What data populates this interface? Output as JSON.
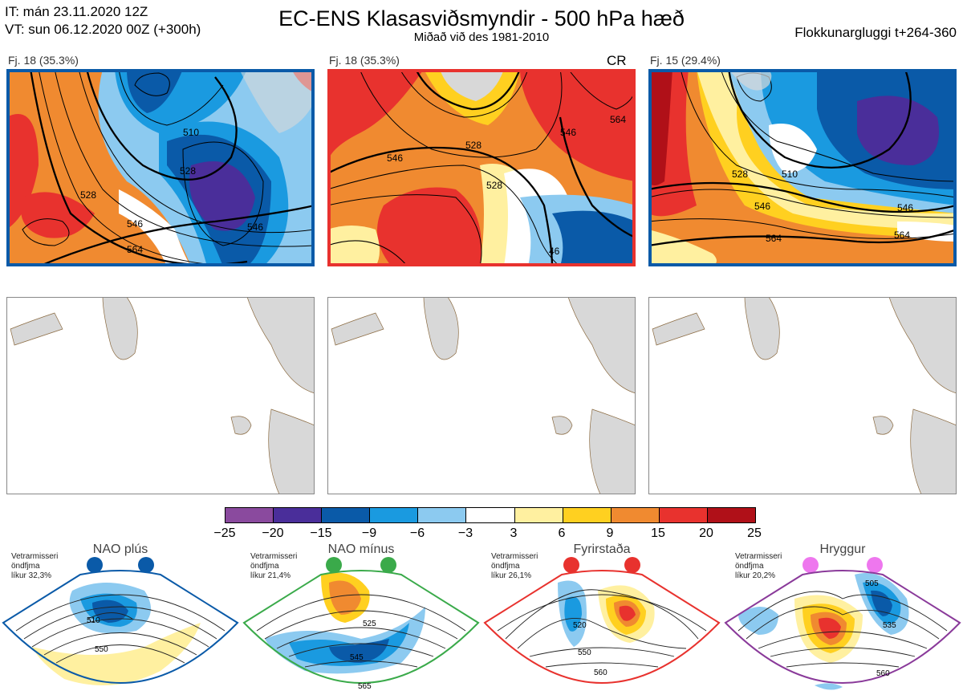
{
  "header": {
    "init_line": "IT: mán 23.11.2020 12Z",
    "valid_line": "VT: sun 06.12.2020 00Z  (+300h)",
    "title": "EC-ENS Klasasviðsmyndir - 500 hPa hæð",
    "subtitle": "Miðað við des 1981-2010",
    "window": "Flokkunargluggi t+264-360"
  },
  "clusters": [
    {
      "label": "Fj. 18 (35.3%)",
      "frame_color": "#0a5aa8",
      "tag": "",
      "contours": [
        "510",
        "528",
        "546",
        "528",
        "546",
        "564"
      ]
    },
    {
      "label": "Fj. 18 (35.3%)",
      "frame_color": "#e8322e",
      "tag": "CR",
      "contours": [
        "528",
        "546",
        "528",
        "546",
        "564",
        "46"
      ]
    },
    {
      "label": "Fj. 15 (29.4%)",
      "frame_color": "#0a5aa8",
      "tag": "",
      "contours": [
        "510",
        "528",
        "546",
        "564",
        "546",
        "564"
      ]
    }
  ],
  "colorbar": {
    "colors": [
      "#8a4a9e",
      "#4a2e9a",
      "#0a5aa8",
      "#1a9ae0",
      "#8ccaf0",
      "#ffffff",
      "#fff0a0",
      "#ffd020",
      "#f08a30",
      "#e8322e",
      "#b01018"
    ],
    "ticks": [
      "−25",
      "−20",
      "−15",
      "−9",
      "−6",
      "−3",
      "3",
      "6",
      "9",
      "15",
      "20",
      "25"
    ]
  },
  "regimes": [
    {
      "name": "NAO plús",
      "info": [
        "Vetrarmisseri",
        "öndfjma",
        "líkur 32,3%"
      ],
      "frame_color": "#0a5aa8",
      "dot_color": "#0a5aa8",
      "contours": [
        "510",
        "550"
      ]
    },
    {
      "name": "NAO mínus",
      "info": [
        "Vetrarmisseri",
        "öndfjma",
        "líkur 21,4%"
      ],
      "frame_color": "#3aaa4a",
      "dot_color": "#3aaa4a",
      "contours": [
        "525",
        "545",
        "565"
      ]
    },
    {
      "name": "Fyrirstaða",
      "info": [
        "Vetrarmisseri",
        "öndfjma",
        "líkur 26,1%"
      ],
      "frame_color": "#e8322e",
      "dot_color": "#e8322e",
      "contours": [
        "520",
        "550",
        "560"
      ]
    },
    {
      "name": "Hryggur",
      "info": [
        "Vetrarmisseri",
        "öndfjma",
        "líkur 20,2%"
      ],
      "frame_color": "#8a3a9a",
      "dot_color": "#ee77ee",
      "contours": [
        "505",
        "535",
        "560"
      ]
    }
  ]
}
